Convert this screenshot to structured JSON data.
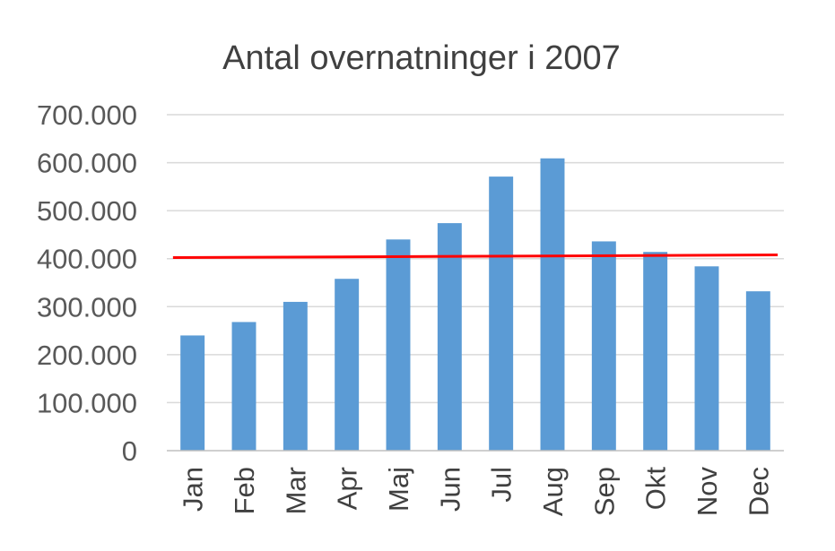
{
  "chart_data": {
    "type": "bar",
    "title": "Antal overnatninger i 2007",
    "categories": [
      "Jan",
      "Feb",
      "Mar",
      "Apr",
      "Maj",
      "Jun",
      "Jul",
      "Aug",
      "Sep",
      "Okt",
      "Nov",
      "Dec"
    ],
    "series": [
      {
        "values": [
          240000,
          268000,
          310000,
          358000,
          440000,
          474000,
          571000,
          609000,
          436000,
          414000,
          384000,
          332000
        ],
        "color": "#5b9bd5"
      }
    ],
    "reference_line": {
      "value": 405000,
      "color": "#ff0000"
    },
    "yticks": [
      "0",
      "100.000",
      "200.000",
      "300.000",
      "400.000",
      "500.000",
      "600.000",
      "700.000"
    ],
    "ylim": [
      0,
      700000
    ],
    "grid": true,
    "legend": "none"
  }
}
